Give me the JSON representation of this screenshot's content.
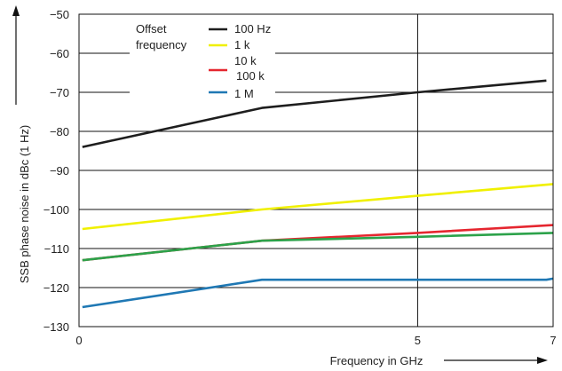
{
  "chart_data": {
    "type": "line",
    "xlabel": "Frequency in GHz",
    "ylabel": "SSB phase noise in dBc (1 Hz)",
    "xlim": [
      0,
      7
    ],
    "ylim": [
      -130,
      -50
    ],
    "x_ticks": [
      0,
      5,
      7
    ],
    "y_ticks": [
      -50,
      -60,
      -70,
      -80,
      -90,
      -100,
      -110,
      -120,
      -130
    ],
    "grid": "horizontal at every y tick; vertical at x = 5",
    "legend": {
      "title_line1": "Offset",
      "title_line2": "frequency",
      "position": "top-left"
    },
    "series": [
      {
        "name": "100 Hz",
        "color": "#1e1e1e",
        "points": [
          [
            0.05,
            -84
          ],
          [
            2.7,
            -74
          ],
          [
            5,
            -70
          ],
          [
            6.9,
            -67
          ]
        ]
      },
      {
        "name": "1 k",
        "color": "#f0f000",
        "points": [
          [
            0.05,
            -105
          ],
          [
            2.7,
            -100
          ],
          [
            5,
            -96.5
          ],
          [
            7,
            -93.5
          ]
        ]
      },
      {
        "name": "10 k",
        "color": "#e5262f",
        "points": [
          [
            0.05,
            -113
          ],
          [
            2.7,
            -108
          ],
          [
            5,
            -106
          ],
          [
            7,
            -104
          ]
        ]
      },
      {
        "name": "100 k",
        "color": "#2ca24a",
        "points": [
          [
            0.05,
            -113
          ],
          [
            2.7,
            -108
          ],
          [
            5,
            -107
          ],
          [
            7,
            -106
          ]
        ]
      },
      {
        "name": "1 M",
        "color": "#1f78b4",
        "points": [
          [
            0.05,
            -125
          ],
          [
            2.7,
            -118
          ],
          [
            5,
            -118
          ],
          [
            6.9,
            -118
          ],
          [
            7,
            -117.7
          ]
        ]
      }
    ]
  }
}
